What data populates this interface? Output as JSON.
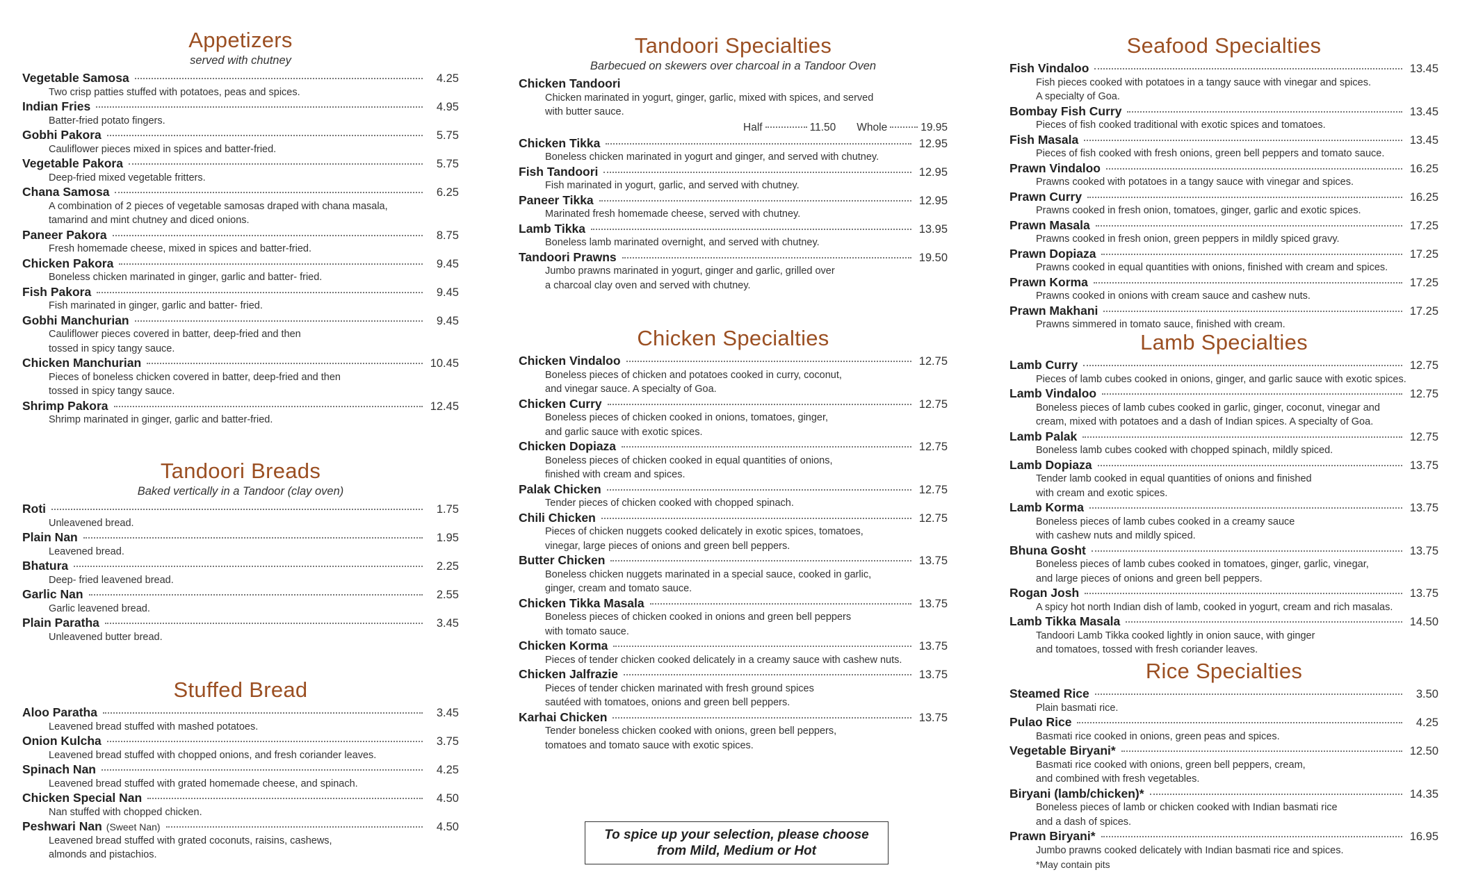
{
  "colors": {
    "heading": "#9b4f22",
    "text": "#222222"
  },
  "columns": [
    {
      "sections": [
        {
          "title": "Appetizers",
          "subtitle": "served with chutney",
          "items": [
            {
              "name": "Vegetable Samosa",
              "price": "4.25",
              "desc": "Two crisp patties stuffed with potatoes, peas and spices."
            },
            {
              "name": "Indian Fries",
              "price": "4.95",
              "desc": "Batter-fried potato fingers."
            },
            {
              "name": "Gobhi Pakora",
              "price": "5.75",
              "desc": "Cauliflower pieces mixed in spices and batter-fried."
            },
            {
              "name": "Vegetable Pakora",
              "price": "5.75",
              "desc": "Deep-fried mixed vegetable fritters."
            },
            {
              "name": "Chana Samosa",
              "price": "6.25",
              "desc": "A combination of 2 pieces of vegetable samosas draped with chana masala,\ntamarind and mint chutney and diced onions."
            },
            {
              "name": "Paneer Pakora",
              "price": "8.75",
              "desc": "Fresh homemade cheese, mixed in spices and batter-fried."
            },
            {
              "name": "Chicken Pakora",
              "price": "9.45",
              "desc": "Boneless chicken marinated in ginger, garlic and batter- fried."
            },
            {
              "name": "Fish Pakora",
              "price": "9.45",
              "desc": "Fish marinated in ginger, garlic and batter- fried."
            },
            {
              "name": "Gobhi Manchurian",
              "price": "9.45",
              "desc": "Cauliflower pieces covered in batter, deep-fried and then\ntossed in spicy tangy sauce."
            },
            {
              "name": "Chicken Manchurian",
              "price": "10.45",
              "desc": "Pieces of boneless chicken covered in batter, deep-fried and then\ntossed in spicy tangy sauce."
            },
            {
              "name": "Shrimp Pakora",
              "price": "12.45",
              "desc": "Shrimp marinated in ginger, garlic and batter-fried."
            }
          ]
        },
        {
          "title": "Tandoori Breads",
          "subtitle": "Baked vertically in a Tandoor (clay oven)",
          "items": [
            {
              "name": "Roti",
              "price": "1.75",
              "desc": "Unleavened bread."
            },
            {
              "name": "Plain Nan",
              "price": "1.95",
              "desc": "Leavened bread."
            },
            {
              "name": "Bhatura",
              "price": "2.25",
              "desc": "Deep- fried leavened bread."
            },
            {
              "name": "Garlic Nan",
              "price": "2.55",
              "desc": "Garlic leavened bread."
            },
            {
              "name": "Plain Paratha",
              "price": "3.45",
              "desc": "Unleavened butter bread."
            }
          ]
        },
        {
          "title": "Stuffed Bread",
          "items": [
            {
              "name": "Aloo Paratha",
              "price": "3.45",
              "desc": "Leavened bread stuffed with mashed potatoes."
            },
            {
              "name": "Onion Kulcha",
              "price": "3.75",
              "desc": "Leavened bread stuffed with chopped onions, and fresh coriander leaves."
            },
            {
              "name": "Spinach Nan",
              "price": "4.25",
              "desc": "Leavened bread stuffed with grated homemade cheese, and spinach."
            },
            {
              "name": "Chicken Special Nan",
              "price": "4.50",
              "desc": "Nan stuffed with chopped chicken."
            },
            {
              "name": "Peshwari Nan",
              "extra": "(Sweet Nan)",
              "price": "4.50",
              "desc": "Leavened bread stuffed with grated coconuts, raisins, cashews,\nalmonds and pistachios."
            }
          ]
        }
      ]
    },
    {
      "sections": [
        {
          "title": "Tandoori Specialties",
          "subtitle": "Barbecued on skewers over charcoal in a Tandoor Oven",
          "items": [
            {
              "name": "Chicken Tandoori",
              "desc": "Chicken marinated in yogurt, ginger, garlic, mixed with spices, and served\nwith butter sauce.",
              "half_label": "Half",
              "half_price": "11.50",
              "whole_label": "Whole",
              "whole_price": "19.95"
            },
            {
              "name": "Chicken Tikka",
              "price": "12.95",
              "desc": "Boneless chicken marinated in yogurt and ginger, and served with chutney."
            },
            {
              "name": "Fish Tandoori",
              "price": "12.95",
              "desc": "Fish marinated in yogurt, garlic, and served with chutney."
            },
            {
              "name": "Paneer Tikka",
              "price": "12.95",
              "desc": "Marinated fresh homemade cheese, served with chutney."
            },
            {
              "name": "Lamb Tikka",
              "price": "13.95",
              "desc": "Boneless lamb marinated overnight, and served with chutney."
            },
            {
              "name": "Tandoori Prawns",
              "price": "19.50",
              "desc": "Jumbo prawns marinated in yogurt, ginger and garlic, grilled over\na charcoal clay oven and served with chutney."
            }
          ]
        },
        {
          "title": "Chicken Specialties",
          "items": [
            {
              "name": "Chicken Vindaloo",
              "price": "12.75",
              "desc": "Boneless pieces of chicken and potatoes cooked in curry, coconut,\nand vinegar sauce.  A specialty of Goa."
            },
            {
              "name": "Chicken Curry",
              "price": "12.75",
              "desc": "Boneless pieces of chicken cooked in onions, tomatoes, ginger,\nand garlic sauce with exotic spices."
            },
            {
              "name": "Chicken Dopiaza",
              "price": "12.75",
              "desc": "Boneless pieces of chicken cooked in equal quantities of onions,\nfinished with cream and spices."
            },
            {
              "name": "Palak Chicken",
              "price": "12.75",
              "desc": "Tender pieces of chicken cooked with chopped spinach."
            },
            {
              "name": "Chili Chicken",
              "price": "12.75",
              "desc": "Pieces of chicken nuggets cooked delicately in exotic spices, tomatoes,\nvinegar, large pieces of onions and green bell peppers."
            },
            {
              "name": "Butter  Chicken",
              "price": "13.75",
              "desc": "Boneless chicken nuggets marinated in a special sauce, cooked in garlic,\nginger, cream and tomato sauce."
            },
            {
              "name": "Chicken Tikka Masala",
              "price": "13.75",
              "desc": "Boneless pieces of chicken cooked in onions and green bell peppers\nwith tomato sauce."
            },
            {
              "name": "Chicken Korma",
              "price": "13.75",
              "desc": "Pieces of tender chicken cooked delicately in a creamy sauce with cashew nuts."
            },
            {
              "name": "Chicken Jalfrazie",
              "price": "13.75",
              "desc": "Pieces of tender chicken marinated with fresh ground spices\nsautéed with tomatoes, onions and green bell peppers."
            },
            {
              "name": "Karhai Chicken",
              "price": "13.75",
              "desc": "Tender boneless chicken cooked with onions, green bell peppers,\ntomatoes and tomato sauce with exotic spices."
            }
          ]
        }
      ]
    },
    {
      "sections": [
        {
          "title": "Seafood Specialties",
          "items": [
            {
              "name": "Fish Vindaloo",
              "price": "13.45",
              "desc": "Fish pieces cooked with potatoes in a tangy sauce with vinegar and spices.\nA specialty of Goa."
            },
            {
              "name": "Bombay Fish Curry",
              "price": "13.45",
              "desc": "Pieces of fish cooked traditional with exotic spices and tomatoes."
            },
            {
              "name": "Fish Masala",
              "price": "13.45",
              "desc": "Pieces of fish cooked with fresh onions, green bell peppers and tomato sauce."
            },
            {
              "name": "Prawn Vindaloo",
              "price": "16.25",
              "desc": "Prawns cooked with potatoes in a tangy sauce with vinegar and spices."
            },
            {
              "name": "Prawn Curry",
              "price": "16.25",
              "desc": "Prawns cooked in fresh onion, tomatoes, ginger, garlic and exotic spices."
            },
            {
              "name": "Prawn Masala",
              "price": "17.25",
              "desc": "Prawns cooked in fresh onion, green peppers in mildly spiced gravy."
            },
            {
              "name": "Prawn Dopiaza",
              "price": "17.25",
              "desc": "Prawns cooked in equal quantities with onions, finished with cream and spices."
            },
            {
              "name": "Prawn Korma",
              "price": "17.25",
              "desc": "Prawns cooked in onions with cream sauce and cashew nuts."
            },
            {
              "name": "Prawn Makhani",
              "price": "17.25",
              "desc": "Prawns simmered in tomato sauce, finished with cream."
            }
          ]
        },
        {
          "title": "Lamb Specialties",
          "items": [
            {
              "name": "Lamb Curry",
              "price": "12.75",
              "desc": "Pieces of lamb cubes cooked in onions, ginger, and garlic sauce with exotic spices."
            },
            {
              "name": "Lamb Vindaloo",
              "price": "12.75",
              "desc": "Boneless pieces of lamb cubes cooked in garlic, ginger, coconut, vinegar and\ncream, mixed with potatoes and a dash of Indian spices.  A specialty of Goa."
            },
            {
              "name": "Lamb Palak",
              "price": "12.75",
              "desc": "Boneless lamb cubes cooked with chopped spinach, mildly spiced."
            },
            {
              "name": "Lamb Dopiaza",
              "price": "13.75",
              "desc": "Tender lamb cooked in equal quantities of onions and finished\nwith cream and exotic spices."
            },
            {
              "name": "Lamb Korma",
              "price": "13.75",
              "desc": "Boneless pieces of lamb cubes cooked in a creamy sauce\nwith cashew nuts and mildly spiced."
            },
            {
              "name": "Bhuna Gosht",
              "price": "13.75",
              "desc": "Boneless pieces of lamb cubes cooked in tomatoes, ginger, garlic, vinegar,\nand large pieces of onions and green bell peppers."
            },
            {
              "name": "Rogan Josh",
              "price": "13.75",
              "desc": "A spicy hot north Indian dish of lamb, cooked in yogurt, cream and rich masalas."
            },
            {
              "name": "Lamb Tikka Masala",
              "price": "14.50",
              "desc": "Tandoori Lamb Tikka cooked lightly in onion sauce, with ginger\nand tomatoes, tossed with fresh coriander leaves."
            }
          ]
        },
        {
          "title": "Rice Specialties",
          "note": "*May contain pits",
          "items": [
            {
              "name": "Steamed Rice",
              "price": "3.50",
              "desc": "Plain basmati rice."
            },
            {
              "name": "Pulao Rice",
              "price": "4.25",
              "desc": "Basmati rice cooked in onions, green peas and spices."
            },
            {
              "name": "Vegetable Biryani*",
              "price": "12.50",
              "desc": "Basmati rice cooked with onions, green bell peppers, cream,\nand combined with fresh vegetables."
            },
            {
              "name": "Biryani (lamb/chicken)*",
              "price": "14.35",
              "desc": "Boneless pieces of lamb or chicken cooked with Indian basmati rice\nand a dash of spices."
            },
            {
              "name": "Prawn Biryani*",
              "price": "16.95",
              "desc": "Jumbo prawns cooked delicately with Indian basmati rice and spices."
            }
          ]
        }
      ]
    }
  ],
  "spice_note": "To spice up your selection, please choose\nfrom Mild, Medium or Hot"
}
